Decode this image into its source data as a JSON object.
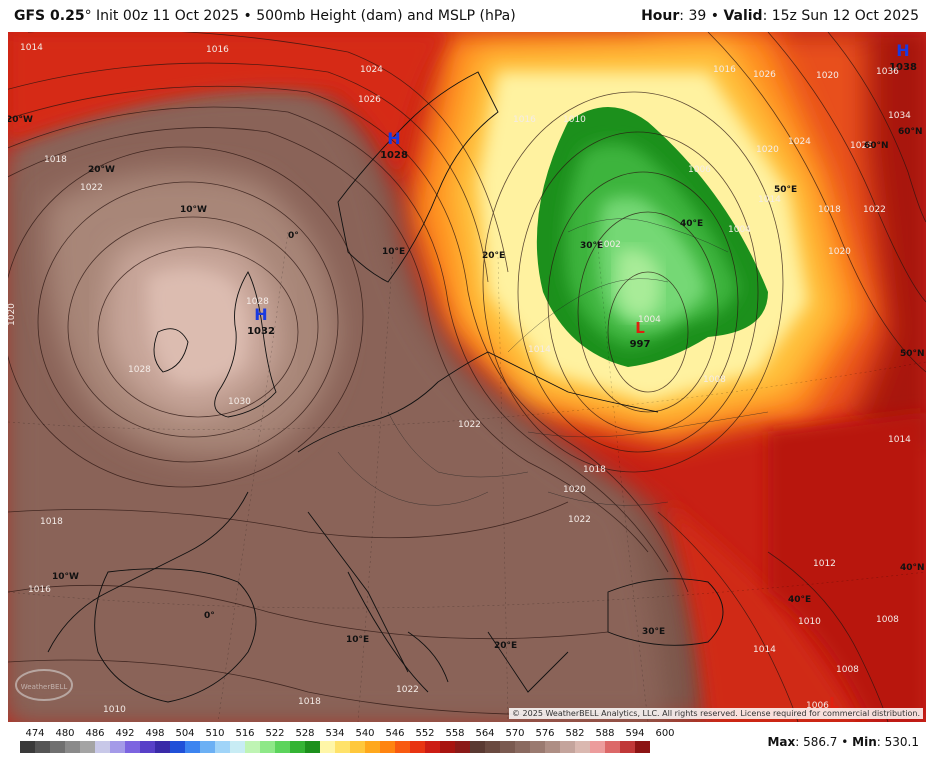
{
  "header": {
    "model": "GFS 0.25",
    "degree": "°",
    "init": "Init 00z 11 Oct 2025",
    "separator": "•",
    "product": "500mb Height (dam) and MSLP (hPa)",
    "hour_label": "Hour",
    "hour_value": ": 39",
    "valid_label": "Valid",
    "valid_value": ": 15z Sun 12 Oct 2025"
  },
  "colorbar": {
    "ticks": [
      "474",
      "480",
      "486",
      "492",
      "498",
      "504",
      "510",
      "516",
      "522",
      "528",
      "534",
      "540",
      "546",
      "552",
      "558",
      "564",
      "570",
      "576",
      "582",
      "588",
      "594",
      "600"
    ],
    "colors": [
      "#3a3a3a",
      "#555555",
      "#707070",
      "#8a8a8a",
      "#a4a4a4",
      "#c8c8e8",
      "#a49ae8",
      "#7c64e0",
      "#5840c8",
      "#3a2aa8",
      "#2050d8",
      "#3c84f0",
      "#6cb0f4",
      "#a0d4f8",
      "#c8ecf4",
      "#bff4b4",
      "#8ee888",
      "#5cd45c",
      "#34b434",
      "#1c901c",
      "#fff6a8",
      "#ffe26a",
      "#ffc83c",
      "#ffa81c",
      "#ff8410",
      "#f85a10",
      "#e83412",
      "#cc1c14",
      "#a81410",
      "#8a1a18",
      "#5a3a32",
      "#6a4a40",
      "#7a5a50",
      "#8a6a60",
      "#9a7a70",
      "#ae8e84",
      "#c4a49c",
      "#dab8b0",
      "#ec9c9c",
      "#dc6868",
      "#c03838",
      "#8c1414"
    ]
  },
  "stats": {
    "max_label": "Max",
    "max_value": ": 586.7",
    "bullet": "•",
    "min_label": "Min",
    "min_value": ": 530.1"
  },
  "copyright": "© 2025 WeatherBELL Analytics, LLC. All rights reserved. License required for commercial distribution.",
  "logo_text": "WeatherBELL",
  "centers": [
    {
      "type": "H",
      "value": "1032"
    },
    {
      "type": "H",
      "value": "1028"
    },
    {
      "type": "H",
      "value": "1038"
    },
    {
      "type": "L",
      "value": "997"
    },
    {
      "type": "L",
      "value": ""
    }
  ],
  "isobar_labels": [
    "1014",
    "1016",
    "1018",
    "1020",
    "1022",
    "1024",
    "1026",
    "1028",
    "1030",
    "1010",
    "1008",
    "1006",
    "1004",
    "1002",
    "1012",
    "1032",
    "1034",
    "1036"
  ],
  "lon_labels": [
    "20°W",
    "10°W",
    "0°",
    "10°E",
    "20°E",
    "30°E",
    "40°E",
    "50°E",
    "10°W",
    "0°",
    "10°E",
    "20°E",
    "30°E",
    "40°E",
    "20°W"
  ],
  "lat_labels": [
    "60°N",
    "50°N",
    "40°N"
  ]
}
